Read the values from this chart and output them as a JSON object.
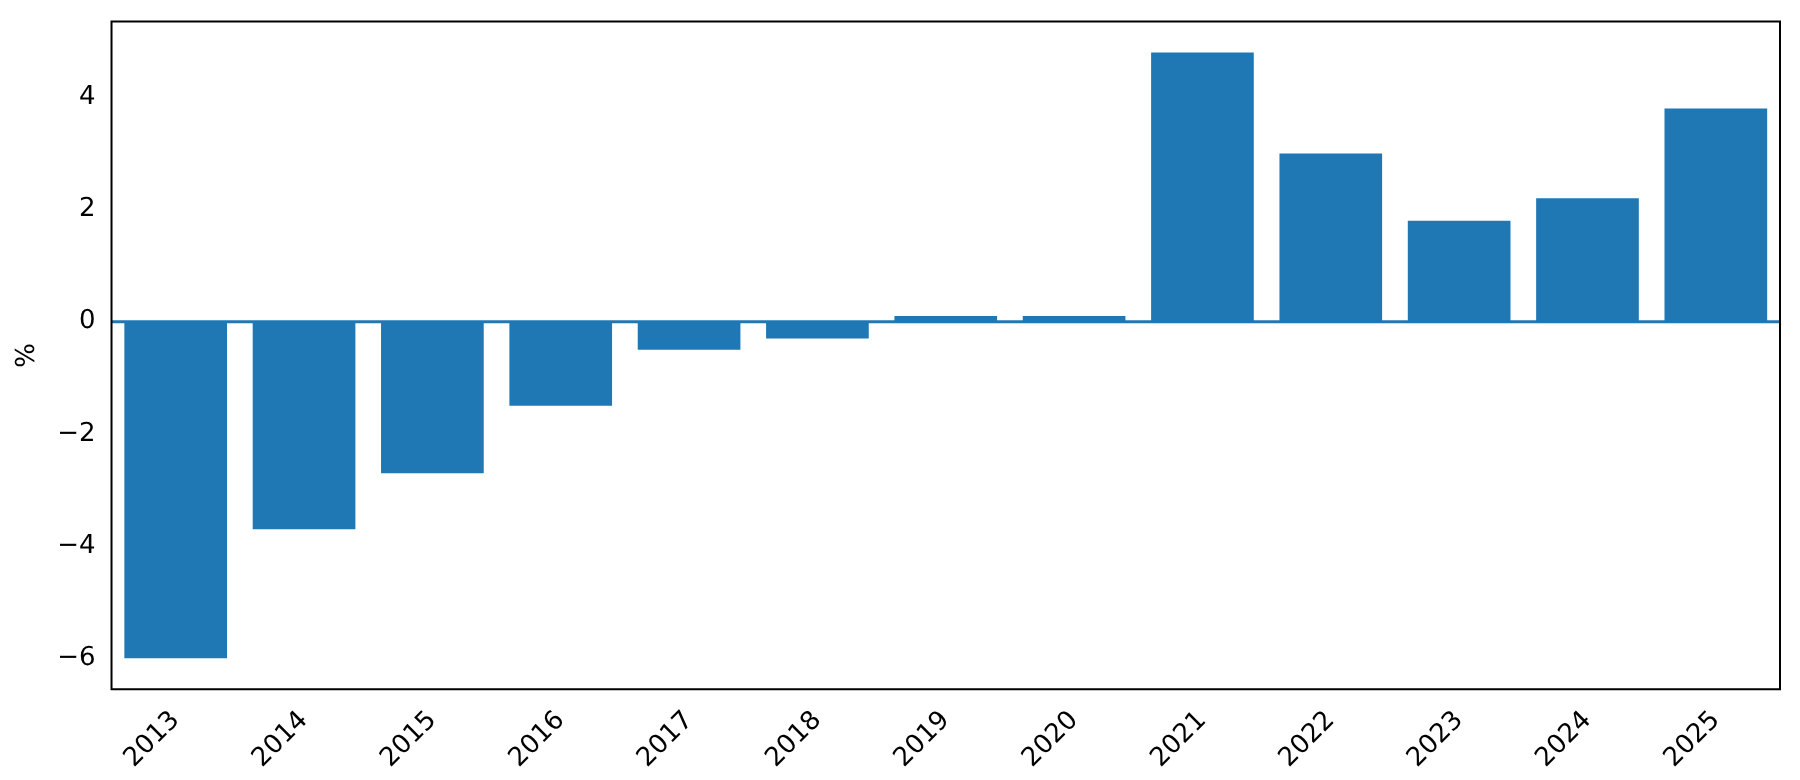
{
  "chart_data": {
    "type": "bar",
    "ylabel": "%",
    "categories": [
      "2013",
      "2014",
      "2015",
      "2016",
      "2017",
      "2018",
      "2019",
      "2020",
      "2021",
      "2022",
      "2023",
      "2024",
      "2025"
    ],
    "values": [
      -6.0,
      -3.7,
      -2.7,
      -1.5,
      -0.5,
      -0.3,
      0.1,
      0.1,
      4.8,
      3.0,
      1.8,
      2.2,
      3.8
    ],
    "color": "#1f77b4",
    "ylim": [
      -6.55,
      5.35
    ],
    "yticks": [
      {
        "value": -6,
        "label": "−6"
      },
      {
        "value": -4,
        "label": "−4"
      },
      {
        "value": -2,
        "label": "−2"
      },
      0,
      2,
      4
    ],
    "ref_lines": [
      {
        "axis": "y",
        "value": 0,
        "color": "#1f77b4"
      }
    ],
    "grid": false,
    "legend": false
  }
}
